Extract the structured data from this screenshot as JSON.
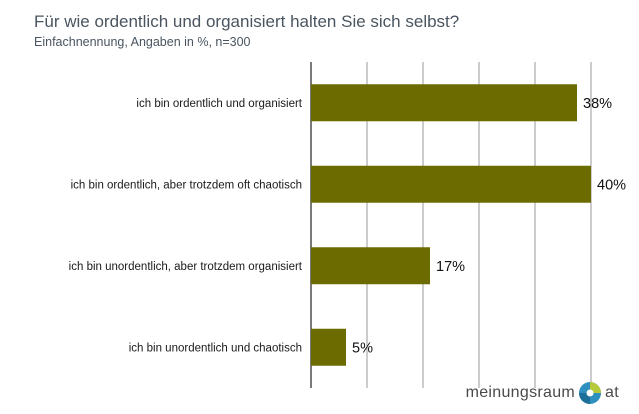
{
  "header": {
    "title": "Für wie ordentlich und organisiert halten Sie sich selbst?",
    "subtitle": "Einfachnennung, Angaben in %, n=300"
  },
  "chart_data": {
    "type": "bar",
    "orientation": "horizontal",
    "categories": [
      "ich bin ordentlich und organisiert",
      "ich bin ordentlich, aber trotzdem oft chaotisch",
      "ich bin unordentlich, aber trotzdem organisiert",
      "ich bin unordentlich und chaotisch"
    ],
    "values": [
      38,
      40,
      17,
      5
    ],
    "value_labels": [
      "38%",
      "40%",
      "17%",
      "5%"
    ],
    "xlim": [
      0,
      40
    ],
    "grid": true,
    "bar_color": "#6b6b00"
  },
  "logo": {
    "text_left": "meinungsraum",
    "text_right": "at"
  }
}
